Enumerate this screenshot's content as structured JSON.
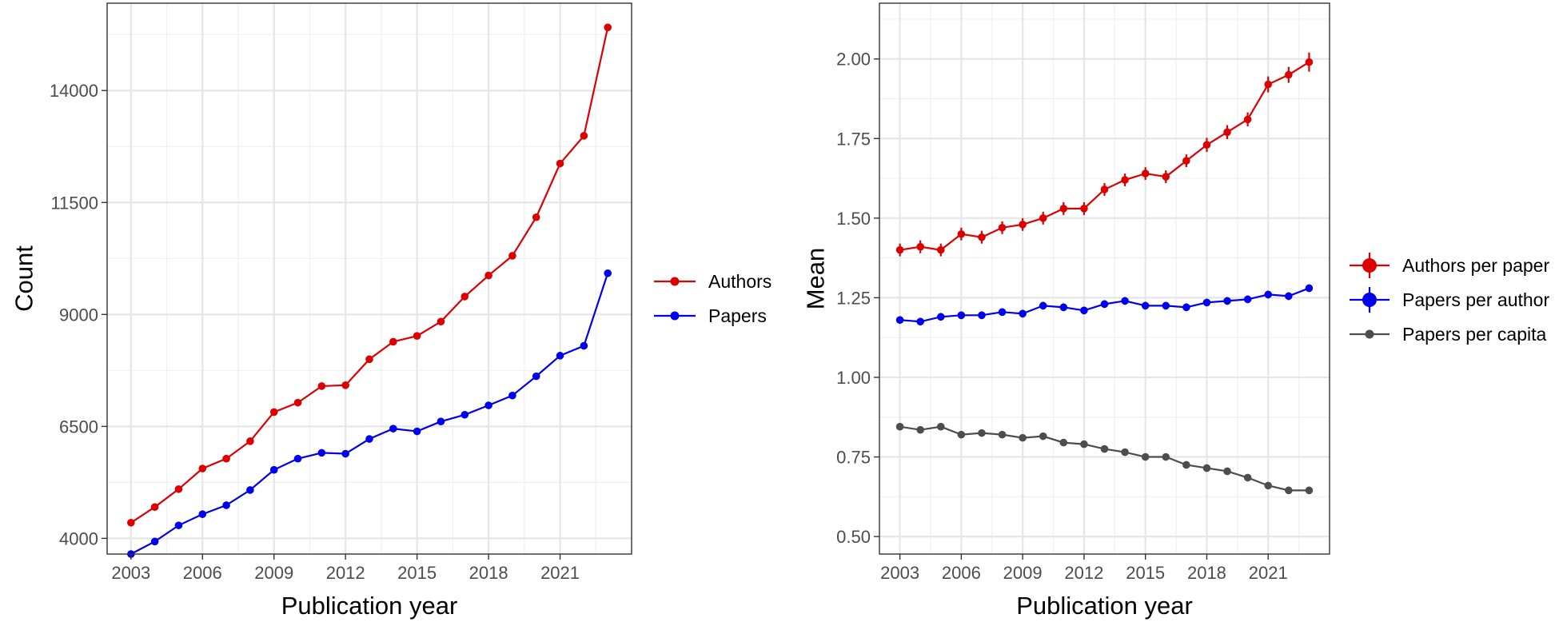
{
  "chart_data": [
    {
      "type": "line",
      "xlabel": "Publication year",
      "ylabel": "Count",
      "xlim": [
        2002,
        2024
      ],
      "ylim": [
        3650,
        15950
      ],
      "xticks": [
        "2003",
        "2006",
        "2009",
        "2012",
        "2015",
        "2018",
        "2021"
      ],
      "yticks": [
        "4000",
        "6500",
        "9000",
        "11500",
        "14000"
      ],
      "grid": true,
      "legend_position": "right",
      "x": [
        2003,
        2004,
        2005,
        2006,
        2007,
        2008,
        2009,
        2010,
        2011,
        2012,
        2013,
        2014,
        2015,
        2016,
        2017,
        2018,
        2019,
        2020,
        2021,
        2022,
        2023
      ],
      "series": [
        {
          "name": "Authors",
          "color": "#dd0000",
          "values": [
            4350,
            4700,
            5100,
            5560,
            5780,
            6170,
            6820,
            7030,
            7400,
            7420,
            8000,
            8390,
            8520,
            8840,
            9400,
            9870,
            10310,
            11170,
            12370,
            12990,
            15410
          ]
        },
        {
          "name": "Papers",
          "color": "#0000ee",
          "values": [
            3650,
            3930,
            4290,
            4540,
            4740,
            5080,
            5530,
            5780,
            5910,
            5890,
            6220,
            6450,
            6390,
            6610,
            6760,
            6970,
            7190,
            7620,
            8080,
            8300,
            9920
          ]
        }
      ]
    },
    {
      "type": "line",
      "xlabel": "Publication year",
      "ylabel": "Mean",
      "xlim": [
        2002,
        2024
      ],
      "ylim": [
        0.445,
        2.175
      ],
      "xticks": [
        "2003",
        "2006",
        "2009",
        "2012",
        "2015",
        "2018",
        "2021"
      ],
      "yticks": [
        "0.50",
        "0.75",
        "1.00",
        "1.25",
        "1.50",
        "1.75",
        "2.00"
      ],
      "grid": true,
      "legend_position": "right",
      "x": [
        2003,
        2004,
        2005,
        2006,
        2007,
        2008,
        2009,
        2010,
        2011,
        2012,
        2013,
        2014,
        2015,
        2016,
        2017,
        2018,
        2019,
        2020,
        2021,
        2022,
        2023
      ],
      "series": [
        {
          "name": "Authors per paper",
          "color": "#dd0000",
          "error_bars": true,
          "values": [
            1.4,
            1.41,
            1.4,
            1.45,
            1.44,
            1.47,
            1.48,
            1.5,
            1.53,
            1.53,
            1.59,
            1.62,
            1.64,
            1.63,
            1.68,
            1.73,
            1.77,
            1.81,
            1.92,
            1.95,
            1.99
          ],
          "errors": [
            0.02,
            0.02,
            0.02,
            0.02,
            0.02,
            0.02,
            0.02,
            0.02,
            0.02,
            0.02,
            0.02,
            0.02,
            0.02,
            0.02,
            0.02,
            0.022,
            0.022,
            0.022,
            0.025,
            0.025,
            0.03
          ]
        },
        {
          "name": "Papers per author",
          "color": "#0000ee",
          "error_bars": true,
          "values": [
            1.18,
            1.175,
            1.19,
            1.195,
            1.195,
            1.205,
            1.2,
            1.225,
            1.22,
            1.21,
            1.23,
            1.24,
            1.225,
            1.225,
            1.22,
            1.235,
            1.24,
            1.245,
            1.26,
            1.255,
            1.28
          ],
          "errors": [
            0.012,
            0.012,
            0.012,
            0.012,
            0.012,
            0.012,
            0.012,
            0.012,
            0.012,
            0.012,
            0.012,
            0.012,
            0.012,
            0.012,
            0.012,
            0.012,
            0.012,
            0.012,
            0.012,
            0.012,
            0.012
          ]
        },
        {
          "name": "Papers per capita",
          "color": "#4d4d4d",
          "error_bars": false,
          "values": [
            0.845,
            0.835,
            0.845,
            0.82,
            0.825,
            0.82,
            0.81,
            0.815,
            0.795,
            0.79,
            0.775,
            0.765,
            0.75,
            0.75,
            0.725,
            0.715,
            0.705,
            0.685,
            0.66,
            0.645,
            0.645
          ]
        }
      ]
    }
  ]
}
